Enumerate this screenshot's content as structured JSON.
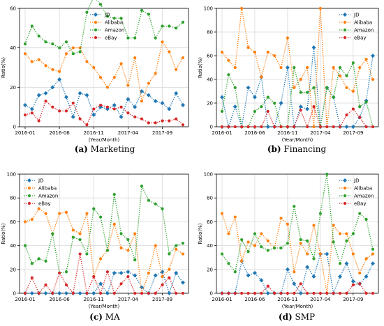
{
  "colors": {
    "JD": "#1f77b4",
    "Alibaba": "#ff7f0e",
    "Amazon": "#2ca02c",
    "eBay": "#d62728"
  },
  "chart_data": [
    {
      "type": "line",
      "caption_letter": "(a)",
      "caption_title": "Marketing",
      "xlabel": "(Year/Month)",
      "ylabel": "Ratio(%)",
      "ylim": [
        0,
        60
      ],
      "yticks": [
        "0",
        "20",
        "40",
        "60"
      ],
      "xticks": [
        {
          "index": 0,
          "label": "2016-01"
        },
        {
          "index": 5,
          "label": "2016-06"
        },
        {
          "index": 10,
          "label": "2016-11"
        },
        {
          "index": 15,
          "label": "2017-04"
        },
        {
          "index": 20,
          "label": "2017-09"
        }
      ],
      "grid": true,
      "legend": "top-center",
      "x_count": 24,
      "series": [
        {
          "name": "JD",
          "marker": "diamond",
          "values": [
            11,
            9,
            16,
            17,
            20,
            24,
            15,
            5,
            17,
            16,
            6,
            10,
            9,
            11,
            5,
            14,
            10,
            18,
            16,
            13,
            12,
            9,
            17,
            11
          ]
        },
        {
          "name": "Alibaba",
          "marker": "circle",
          "values": [
            37,
            33,
            34,
            31,
            29,
            28,
            37,
            40,
            40,
            33,
            30,
            25,
            20,
            25,
            32,
            21,
            35,
            13,
            22,
            27,
            43,
            38,
            29,
            35
          ]
        },
        {
          "name": "Amazon",
          "marker": "circle",
          "values": [
            42,
            51,
            46,
            43,
            42,
            40,
            43,
            37,
            38,
            58,
            66,
            62,
            56,
            55,
            55,
            45,
            45,
            59,
            57,
            45,
            51,
            51,
            50,
            53
          ]
        },
        {
          "name": "eBay",
          "marker": "circle",
          "values": [
            6,
            7,
            3,
            13,
            10,
            8,
            8,
            12,
            4,
            1,
            9,
            11,
            10,
            9,
            10,
            7,
            5,
            4,
            2,
            2,
            3,
            3,
            4,
            1
          ]
        }
      ]
    },
    {
      "type": "line",
      "caption_letter": "(b)",
      "caption_title": "Financing",
      "xlabel": "(Year/Month)",
      "ylabel": "Ratio(%)",
      "ylim": [
        0,
        100
      ],
      "yticks": [
        "0",
        "20",
        "40",
        "60",
        "80",
        "100"
      ],
      "xticks": [
        {
          "index": 0,
          "label": "2016-01"
        },
        {
          "index": 5,
          "label": "2016-06"
        },
        {
          "index": 10,
          "label": "2016-11"
        },
        {
          "index": 15,
          "label": "2017-04"
        },
        {
          "index": 20,
          "label": "2017-09"
        }
      ],
      "grid": true,
      "legend": "top-right",
      "x_count": 24,
      "series": [
        {
          "name": "JD",
          "marker": "diamond",
          "values": [
            25,
            0,
            17,
            0,
            33,
            25,
            42,
            0,
            0,
            20,
            50,
            0,
            17,
            15,
            67,
            0,
            33,
            25,
            0,
            0,
            0,
            8,
            22,
            60
          ]
        },
        {
          "name": "Alibaba",
          "marker": "circle",
          "values": [
            63,
            56,
            50,
            100,
            67,
            63,
            42,
            63,
            60,
            50,
            75,
            33,
            40,
            50,
            0,
            100,
            0,
            50,
            43,
            33,
            30,
            50,
            57,
            40
          ]
        },
        {
          "name": "Amazon",
          "marker": "circle",
          "values": [
            13,
            44,
            33,
            0,
            0,
            13,
            17,
            25,
            20,
            0,
            0,
            50,
            29,
            29,
            33,
            0,
            33,
            25,
            50,
            43,
            54,
            17,
            21,
            0
          ]
        },
        {
          "name": "eBay",
          "marker": "circle",
          "values": [
            0,
            0,
            0,
            0,
            0,
            0,
            0,
            13,
            0,
            0,
            0,
            0,
            14,
            0,
            17,
            0,
            0,
            0,
            0,
            10,
            15,
            8,
            0,
            0
          ]
        }
      ]
    },
    {
      "type": "line",
      "caption_letter": "(c)",
      "caption_title": "MA",
      "xlabel": "(Year/Month)",
      "ylabel": "Ratio(%)",
      "ylim": [
        0,
        100
      ],
      "yticks": [
        "0",
        "20",
        "40",
        "60",
        "80",
        "100"
      ],
      "xticks": [
        {
          "index": 0,
          "label": "2016-01"
        },
        {
          "index": 5,
          "label": "2016-06"
        },
        {
          "index": 10,
          "label": "2016-11"
        },
        {
          "index": 15,
          "label": "2017-04"
        },
        {
          "index": 20,
          "label": "2017-09"
        }
      ],
      "grid": true,
      "legend": "top-left",
      "x_count": 24,
      "series": [
        {
          "name": "JD",
          "marker": "diamond",
          "values": [
            0,
            0,
            0,
            0,
            0,
            0,
            0,
            0,
            0,
            0,
            0,
            8,
            0,
            17,
            17,
            18,
            15,
            5,
            0,
            15,
            18,
            0,
            17,
            9
          ]
        },
        {
          "name": "Alibaba",
          "marker": "circle",
          "values": [
            60,
            62,
            71,
            67,
            50,
            67,
            68,
            53,
            50,
            67,
            14,
            29,
            36,
            58,
            38,
            36,
            50,
            0,
            17,
            40,
            14,
            20,
            37,
            33
          ]
        },
        {
          "name": "Amazon",
          "marker": "circle",
          "values": [
            40,
            25,
            29,
            27,
            50,
            17,
            18,
            47,
            45,
            33,
            71,
            64,
            36,
            83,
            50,
            45,
            28,
            90,
            78,
            75,
            71,
            33,
            40,
            42
          ]
        },
        {
          "name": "eBay",
          "marker": "circle",
          "values": [
            0,
            13,
            0,
            7,
            0,
            17,
            7,
            0,
            33,
            0,
            14,
            0,
            18,
            0,
            8,
            14,
            0,
            0,
            0,
            0,
            7,
            13,
            0,
            0
          ]
        }
      ]
    },
    {
      "type": "line",
      "caption_letter": "(d)",
      "caption_title": "SMP",
      "xlabel": "(Year/Month)",
      "ylabel": "Ratio(%)",
      "ylim": [
        0,
        100
      ],
      "yticks": [
        "0",
        "20",
        "40",
        "60",
        "80",
        "100"
      ],
      "xticks": [
        {
          "index": 0,
          "label": "2016-01"
        },
        {
          "index": 5,
          "label": "2016-06"
        },
        {
          "index": 10,
          "label": "2016-11"
        },
        {
          "index": 15,
          "label": "2017-04"
        },
        {
          "index": 20,
          "label": "2017-09"
        }
      ],
      "grid": true,
      "legend": "top-right",
      "x_count": 24,
      "series": [
        {
          "name": "JD",
          "marker": "diamond",
          "values": [
            0,
            0,
            0,
            27,
            15,
            17,
            11,
            0,
            0,
            0,
            20,
            8,
            0,
            22,
            14,
            33,
            33,
            0,
            14,
            25,
            10,
            8,
            14,
            25
          ]
        },
        {
          "name": "Alibaba",
          "marker": "circle",
          "values": [
            67,
            50,
            64,
            27,
            43,
            40,
            50,
            44,
            38,
            63,
            58,
            18,
            42,
            33,
            57,
            33,
            0,
            57,
            50,
            50,
            33,
            17,
            29,
            33
          ]
        },
        {
          "name": "Amazon",
          "marker": "circle",
          "values": [
            33,
            25,
            18,
            45,
            35,
            50,
            39,
            36,
            38,
            38,
            42,
            73,
            45,
            44,
            29,
            67,
            100,
            43,
            25,
            44,
            50,
            67,
            62,
            37
          ]
        },
        {
          "name": "eBay",
          "marker": "circle",
          "values": [
            0,
            0,
            0,
            0,
            0,
            0,
            0,
            6,
            0,
            0,
            0,
            0,
            8,
            0,
            0,
            0,
            0,
            0,
            0,
            0,
            7,
            8,
            0,
            0
          ]
        }
      ]
    }
  ]
}
